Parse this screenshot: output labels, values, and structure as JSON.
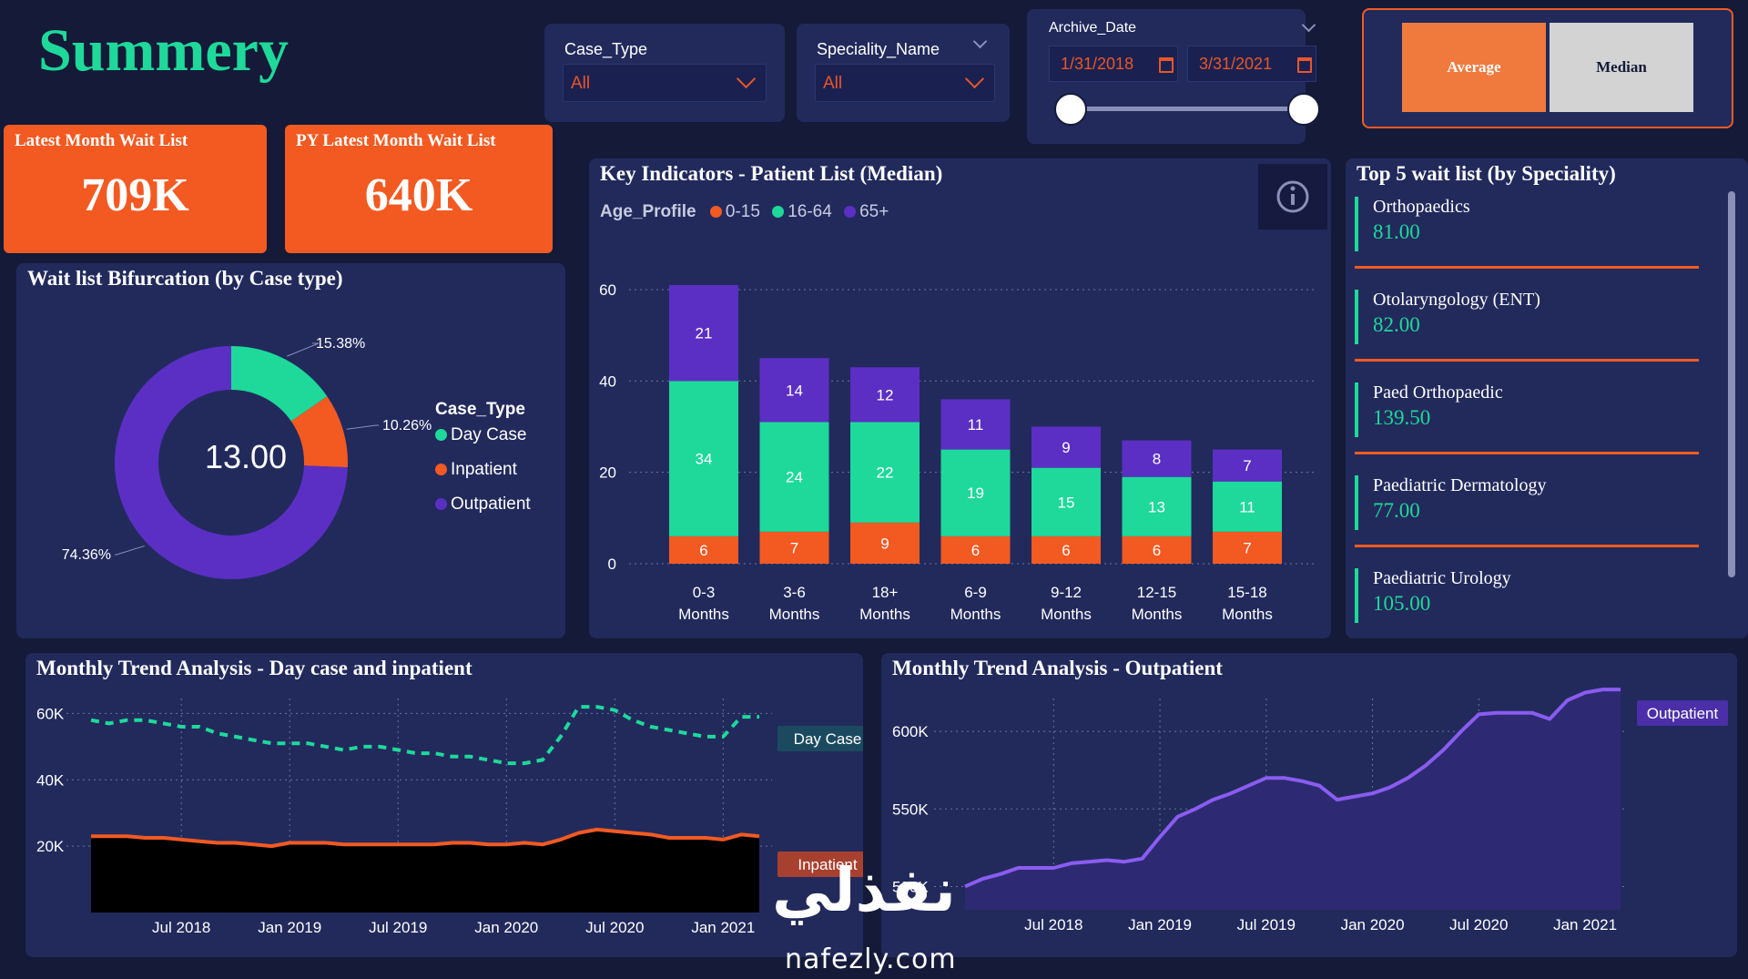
{
  "app_title": "Summery",
  "slicers": {
    "case_type": {
      "label": "Case_Type",
      "value": "All"
    },
    "speciality": {
      "label": "Speciality_Name",
      "value": "All"
    },
    "archive_date": {
      "label": "Archive_Date",
      "start": "1/31/2018",
      "end": "3/31/2021"
    }
  },
  "toggle": {
    "average": "Average",
    "median": "Median",
    "selected": "Average"
  },
  "kpis": [
    {
      "label": "Latest Month Wait List",
      "value": "709K"
    },
    {
      "label": "PY Latest Month Wait List",
      "value": "640K"
    }
  ],
  "donut": {
    "title": "Wait list Bifurcation (by Case type)",
    "center_value": "13.00",
    "legend_title": "Case_Type",
    "slices": [
      {
        "name": "Day Case",
        "pct": 15.38,
        "label": "15.38%",
        "color": "#1ed99a"
      },
      {
        "name": "Inpatient",
        "pct": 10.26,
        "label": "10.26%",
        "color": "#f25a22"
      },
      {
        "name": "Outpatient",
        "pct": 74.36,
        "label": "74.36%",
        "color": "#5b2fc4"
      }
    ]
  },
  "key_indicators": {
    "title": "Key Indicators - Patient List (Median)",
    "legend_title": "Age_Profile",
    "info_icon": "info-icon"
  },
  "specialities": {
    "title": "Top 5 wait list (by Speciality)",
    "items": [
      {
        "name": "Orthopaedics",
        "value": "81.00"
      },
      {
        "name": "Otolaryngology (ENT)",
        "value": "82.00"
      },
      {
        "name": "Paed Orthopaedic",
        "value": "139.50"
      },
      {
        "name": "Paediatric Dermatology",
        "value": "77.00"
      },
      {
        "name": "Paediatric Urology",
        "value": "105.00"
      }
    ]
  },
  "trend_day": {
    "title": "Monthly Trend Analysis - Day case and inpatient"
  },
  "trend_out": {
    "title": "Monthly Trend Analysis - Outpatient"
  },
  "watermark": {
    "arabic": "نفذلي",
    "latin": "nafezly.com"
  },
  "colors": {
    "orange": "#f25a22",
    "green": "#1ed99a",
    "purple": "#5b2fc4",
    "panel": "#222a5c",
    "bg": "#141a38"
  },
  "chart_data": [
    {
      "type": "bar",
      "stacked": true,
      "title": "Key Indicators - Patient List (Median)",
      "legend_title": "Age_Profile",
      "categories": [
        "0-3 Months",
        "3-6 Months",
        "18+ Months",
        "6-9 Months",
        "9-12 Months",
        "12-15 Months",
        "15-18 Months"
      ],
      "category_lines": [
        [
          "0-3",
          "Months"
        ],
        [
          "3-6",
          "Months"
        ],
        [
          "18+",
          "Months"
        ],
        [
          "6-9",
          "Months"
        ],
        [
          "9-12",
          "Months"
        ],
        [
          "12-15",
          "Months"
        ],
        [
          "15-18",
          "Months"
        ]
      ],
      "series": [
        {
          "name": "0-15",
          "color": "#f25a22",
          "values": [
            6,
            7,
            9,
            6,
            6,
            6,
            7
          ]
        },
        {
          "name": "16-64",
          "color": "#1ed99a",
          "values": [
            34,
            24,
            22,
            19,
            15,
            13,
            11
          ]
        },
        {
          "name": "65+",
          "color": "#5b2fc4",
          "values": [
            21,
            14,
            12,
            11,
            9,
            8,
            7
          ]
        }
      ],
      "ylim": [
        0,
        60
      ],
      "yticks": [
        0,
        20,
        40,
        60
      ],
      "grid": true,
      "legend_position": "top-left"
    },
    {
      "type": "line",
      "title": "Monthly Trend Analysis - Day case and inpatient",
      "x": [
        "2018-02",
        "2018-03",
        "2018-04",
        "2018-05",
        "2018-06",
        "2018-07",
        "2018-08",
        "2018-09",
        "2018-10",
        "2018-11",
        "2018-12",
        "2019-01",
        "2019-02",
        "2019-03",
        "2019-04",
        "2019-05",
        "2019-06",
        "2019-07",
        "2019-08",
        "2019-09",
        "2019-10",
        "2019-11",
        "2019-12",
        "2020-01",
        "2020-02",
        "2020-03",
        "2020-04",
        "2020-05",
        "2020-06",
        "2020-07",
        "2020-08",
        "2020-09",
        "2020-10",
        "2020-11",
        "2020-12",
        "2021-01",
        "2021-02",
        "2021-03"
      ],
      "xticks": [
        "Jul 2018",
        "Jan 2019",
        "Jul 2019",
        "Jan 2020",
        "Jul 2020",
        "Jan 2021"
      ],
      "yticks": [
        "20K",
        "40K",
        "60K"
      ],
      "ylim": [
        0,
        70000
      ],
      "series": [
        {
          "name": "Day Case",
          "color": "#1ed99a",
          "style": "dashed",
          "values": [
            58000,
            57000,
            58000,
            58000,
            57000,
            56000,
            56000,
            54000,
            53000,
            52000,
            51000,
            51000,
            51000,
            50000,
            49000,
            50000,
            50000,
            49000,
            48000,
            48000,
            47000,
            47000,
            46000,
            45000,
            45000,
            46000,
            53000,
            62000,
            62000,
            61000,
            58000,
            56000,
            55000,
            54000,
            53000,
            53000,
            59000,
            59000
          ]
        },
        {
          "name": "Inpatient",
          "color": "#f25a22",
          "style": "solid",
          "area": true,
          "values": [
            23000,
            23000,
            23000,
            22500,
            22500,
            22000,
            21500,
            21000,
            21000,
            20500,
            20000,
            21000,
            21000,
            21000,
            20500,
            20500,
            20500,
            20500,
            20500,
            20500,
            21000,
            21000,
            20500,
            20500,
            21000,
            20500,
            22000,
            24000,
            25000,
            24500,
            24000,
            23500,
            22500,
            22500,
            22500,
            22000,
            23500,
            23000
          ]
        }
      ],
      "grid": true,
      "legend_position": "right"
    },
    {
      "type": "area",
      "title": "Monthly Trend Analysis - Outpatient",
      "x": [
        "2018-02",
        "2018-03",
        "2018-04",
        "2018-05",
        "2018-06",
        "2018-07",
        "2018-08",
        "2018-09",
        "2018-10",
        "2018-11",
        "2018-12",
        "2019-01",
        "2019-02",
        "2019-03",
        "2019-04",
        "2019-05",
        "2019-06",
        "2019-07",
        "2019-08",
        "2019-09",
        "2019-10",
        "2019-11",
        "2019-12",
        "2020-01",
        "2020-02",
        "2020-03",
        "2020-04",
        "2020-05",
        "2020-06",
        "2020-07",
        "2020-08",
        "2020-09",
        "2020-10",
        "2020-11",
        "2020-12",
        "2021-01",
        "2021-02",
        "2021-03"
      ],
      "xticks": [
        "Jul 2018",
        "Jan 2019",
        "Jul 2019",
        "Jan 2020",
        "Jul 2020",
        "Jan 2021"
      ],
      "yticks": [
        "500K",
        "550K",
        "600K"
      ],
      "ylim": [
        485000,
        630000
      ],
      "series": [
        {
          "name": "Outpatient",
          "color": "#8a5cf0",
          "values": [
            500000,
            505000,
            508000,
            512000,
            512000,
            512000,
            515000,
            516000,
            517000,
            516000,
            518000,
            532000,
            545000,
            550000,
            556000,
            560000,
            565000,
            570000,
            570000,
            568000,
            565000,
            556000,
            558000,
            560000,
            564000,
            570000,
            578000,
            588000,
            600000,
            611000,
            612000,
            612000,
            612000,
            608000,
            620000,
            625000,
            627000,
            627000
          ]
        }
      ],
      "grid": true,
      "legend_position": "right"
    }
  ]
}
